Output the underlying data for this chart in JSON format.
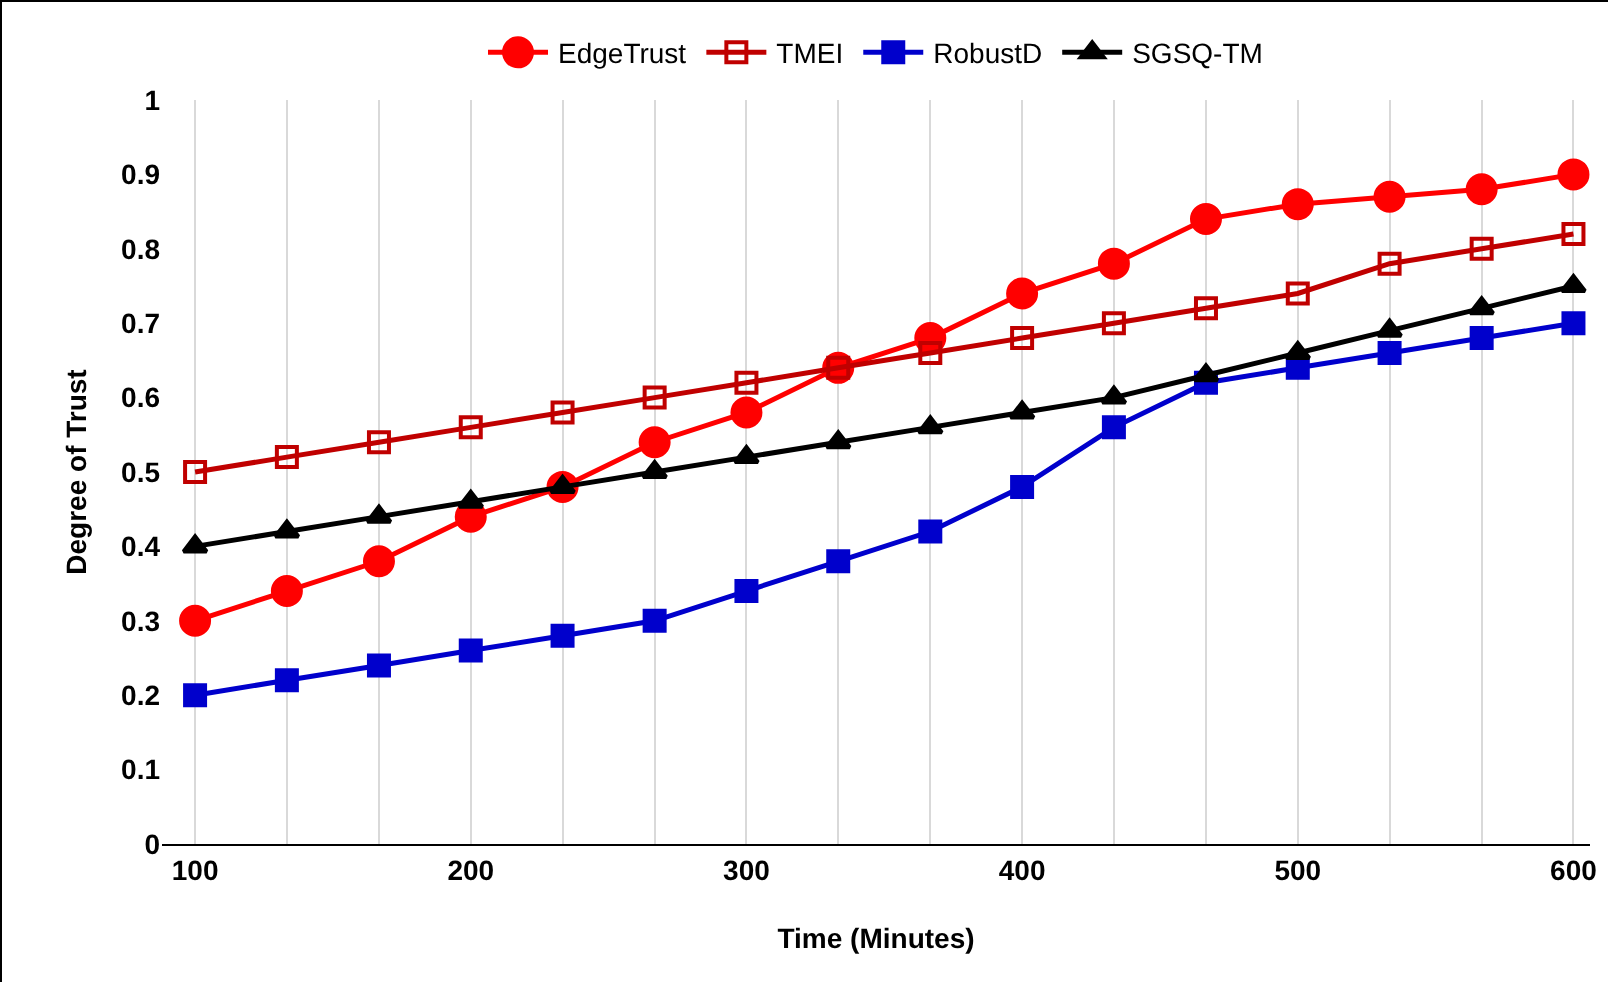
{
  "chart_data": {
    "type": "line",
    "xlabel": "Time (Minutes)",
    "ylabel": "Degree of Trust",
    "x": [
      100,
      133.3,
      166.7,
      200,
      233.3,
      266.7,
      300,
      333.3,
      366.7,
      400,
      433.3,
      466.7,
      500,
      533.3,
      566.7,
      600
    ],
    "series": [
      {
        "name": "EdgeTrust",
        "color": "#ff0000",
        "marker": "circle",
        "values": [
          0.3,
          0.34,
          0.38,
          0.44,
          0.48,
          0.54,
          0.58,
          0.64,
          0.68,
          0.74,
          0.78,
          0.84,
          0.86,
          0.87,
          0.88,
          0.9
        ]
      },
      {
        "name": "TMEI",
        "color": "#c00000",
        "marker": "square-open",
        "values": [
          0.5,
          0.52,
          0.54,
          0.56,
          0.58,
          0.6,
          0.62,
          0.64,
          0.66,
          0.68,
          0.7,
          0.72,
          0.74,
          0.78,
          0.8,
          0.82
        ]
      },
      {
        "name": "RobustD",
        "color": "#0000cc",
        "marker": "square",
        "values": [
          0.2,
          0.22,
          0.24,
          0.26,
          0.28,
          0.3,
          0.34,
          0.38,
          0.42,
          0.48,
          0.56,
          0.62,
          0.64,
          0.66,
          0.68,
          0.7
        ]
      },
      {
        "name": "SGSQ-TM",
        "color": "#000000",
        "marker": "triangle",
        "values": [
          0.4,
          0.42,
          0.44,
          0.46,
          0.48,
          0.5,
          0.52,
          0.54,
          0.56,
          0.58,
          0.6,
          0.63,
          0.66,
          0.69,
          0.72,
          0.75
        ]
      }
    ],
    "xlim": [
      88,
      606
    ],
    "xticks": [
      100,
      {
        "value": 133.3,
        "label": null
      },
      {
        "value": 166.7,
        "label": null
      },
      200,
      {
        "value": 233.3,
        "label": null
      },
      {
        "value": 266.7,
        "label": null
      },
      300,
      {
        "value": 333.3,
        "label": null
      },
      {
        "value": 366.7,
        "label": null
      },
      400,
      {
        "value": 433.3,
        "label": null
      },
      {
        "value": 466.7,
        "label": null
      },
      500,
      {
        "value": 533.3,
        "label": null
      },
      {
        "value": 566.7,
        "label": null
      },
      600
    ],
    "ylim": [
      0,
      1
    ],
    "yticks": [
      0,
      0.1,
      0.2,
      0.3,
      0.4,
      0.5,
      0.6,
      0.7,
      0.8,
      0.9,
      1
    ],
    "grid": "x",
    "legend": "top",
    "line_style": "solid"
  }
}
